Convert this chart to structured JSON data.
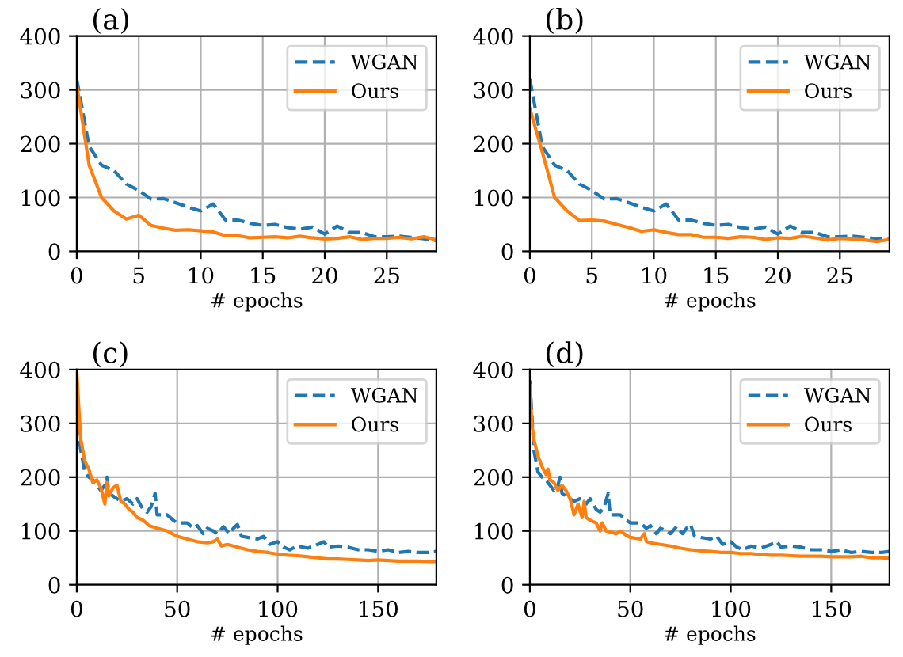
{
  "chart_data": [
    {
      "type": "line",
      "title": "(a)",
      "xlabel": "# epochs",
      "xlim": [
        0,
        29
      ],
      "ylim": [
        0,
        400
      ],
      "xticks": [
        0,
        5,
        10,
        15,
        20,
        25
      ],
      "yticks": [
        0,
        100,
        200,
        300,
        400
      ],
      "grid": true,
      "legend": "top right",
      "series": [
        {
          "name": "WGAN",
          "color": "#1f77b4",
          "line_style": "dashed",
          "x": [
            0,
            1,
            2,
            3,
            4,
            5,
            6,
            7,
            8,
            9,
            10,
            11,
            12,
            13,
            14,
            15,
            16,
            17,
            18,
            19,
            20,
            21,
            22,
            23,
            24,
            25,
            26,
            27,
            28,
            29
          ],
          "values": [
            320,
            195,
            160,
            150,
            125,
            113,
            97,
            98,
            90,
            82,
            75,
            88,
            58,
            58,
            52,
            48,
            50,
            44,
            41,
            45,
            32,
            47,
            35,
            35,
            27,
            27,
            28,
            26,
            23,
            20
          ]
        },
        {
          "name": "Ours",
          "color": "#ff7f0e",
          "line_style": "solid",
          "x": [
            0,
            1,
            2,
            3,
            4,
            5,
            6,
            7,
            8,
            9,
            10,
            11,
            12,
            13,
            14,
            15,
            16,
            17,
            18,
            19,
            20,
            21,
            22,
            23,
            24,
            25,
            26,
            27,
            28,
            29
          ],
          "values": [
            310,
            160,
            100,
            75,
            60,
            67,
            48,
            43,
            39,
            40,
            38,
            36,
            29,
            29,
            25,
            26,
            27,
            25,
            28,
            25,
            23,
            24,
            27,
            22,
            24,
            24,
            26,
            23,
            27,
            21
          ]
        }
      ]
    },
    {
      "type": "line",
      "title": "(b)",
      "xlabel": "# epochs",
      "xlim": [
        0,
        29
      ],
      "ylim": [
        0,
        400
      ],
      "xticks": [
        0,
        5,
        10,
        15,
        20,
        25
      ],
      "yticks": [
        0,
        100,
        200,
        300,
        400
      ],
      "grid": true,
      "legend": "top right",
      "series": [
        {
          "name": "WGAN",
          "color": "#1f77b4",
          "line_style": "dashed",
          "x": [
            0,
            1,
            2,
            3,
            4,
            5,
            6,
            7,
            8,
            9,
            10,
            11,
            12,
            13,
            14,
            15,
            16,
            17,
            18,
            19,
            20,
            21,
            22,
            23,
            24,
            25,
            26,
            27,
            28,
            29
          ],
          "values": [
            320,
            195,
            160,
            150,
            125,
            113,
            97,
            98,
            90,
            82,
            75,
            88,
            58,
            58,
            52,
            48,
            50,
            44,
            41,
            45,
            32,
            47,
            35,
            35,
            27,
            27,
            28,
            26,
            23,
            22
          ]
        },
        {
          "name": "Ours",
          "color": "#ff7f0e",
          "line_style": "solid",
          "x": [
            0,
            1,
            2,
            3,
            4,
            5,
            6,
            7,
            8,
            9,
            10,
            11,
            12,
            13,
            14,
            15,
            16,
            17,
            18,
            19,
            20,
            21,
            22,
            23,
            24,
            25,
            26,
            27,
            28,
            29
          ],
          "values": [
            265,
            185,
            100,
            75,
            57,
            58,
            56,
            50,
            44,
            37,
            40,
            35,
            31,
            31,
            26,
            26,
            24,
            27,
            26,
            22,
            25,
            24,
            28,
            25,
            21,
            24,
            23,
            21,
            18,
            22
          ]
        }
      ]
    },
    {
      "type": "line",
      "title": "(c)",
      "xlabel": "# epochs",
      "xlim": [
        0,
        179
      ],
      "ylim": [
        0,
        400
      ],
      "xticks": [
        0,
        50,
        100,
        150
      ],
      "yticks": [
        0,
        100,
        200,
        300,
        400
      ],
      "grid": true,
      "legend": "top right",
      "series": [
        {
          "name": "WGAN",
          "color": "#1f77b4",
          "line_style": "dashed",
          "x": [
            0,
            2,
            4,
            6,
            8,
            10,
            12,
            14,
            15,
            16,
            18,
            20,
            22,
            25,
            28,
            30,
            33,
            35,
            37,
            39,
            40,
            43,
            45,
            48,
            50,
            55,
            58,
            60,
            63,
            65,
            68,
            70,
            73,
            76,
            78,
            80,
            82,
            85,
            90,
            93,
            96,
            100,
            103,
            106,
            110,
            115,
            120,
            123,
            125,
            130,
            135,
            140,
            145,
            150,
            155,
            160,
            165,
            170,
            175,
            179
          ],
          "values": [
            300,
            250,
            210,
            200,
            195,
            185,
            175,
            185,
            200,
            170,
            165,
            160,
            155,
            160,
            150,
            160,
            140,
            135,
            145,
            170,
            130,
            130,
            130,
            120,
            115,
            115,
            105,
            110,
            95,
            105,
            100,
            95,
            108,
            95,
            105,
            112,
            90,
            88,
            85,
            90,
            75,
            80,
            70,
            65,
            72,
            68,
            75,
            80,
            70,
            72,
            70,
            65,
            65,
            62,
            65,
            60,
            62,
            60,
            60,
            62
          ]
        },
        {
          "name": "Ours",
          "color": "#ff7f0e",
          "line_style": "solid",
          "x": [
            0,
            1,
            2,
            4,
            6,
            8,
            10,
            12,
            14,
            15,
            16,
            18,
            20,
            22,
            24,
            26,
            28,
            30,
            33,
            36,
            40,
            45,
            50,
            55,
            60,
            65,
            68,
            70,
            72,
            75,
            80,
            85,
            90,
            95,
            100,
            105,
            110,
            115,
            120,
            125,
            130,
            135,
            140,
            145,
            150,
            155,
            160,
            165,
            170,
            175,
            179
          ],
          "values": [
            400,
            330,
            270,
            230,
            215,
            190,
            195,
            180,
            150,
            190,
            165,
            180,
            185,
            155,
            150,
            140,
            135,
            125,
            120,
            110,
            105,
            100,
            90,
            85,
            80,
            78,
            80,
            85,
            72,
            75,
            70,
            65,
            62,
            60,
            57,
            55,
            54,
            52,
            50,
            48,
            48,
            47,
            46,
            45,
            46,
            45,
            44,
            44,
            44,
            43,
            43
          ]
        }
      ]
    },
    {
      "type": "line",
      "title": "(d)",
      "xlabel": "# epochs",
      "xlim": [
        0,
        179
      ],
      "ylim": [
        0,
        400
      ],
      "xticks": [
        0,
        50,
        100,
        150
      ],
      "yticks": [
        0,
        100,
        200,
        300,
        400
      ],
      "grid": true,
      "legend": "top right",
      "series": [
        {
          "name": "WGAN",
          "color": "#1f77b4",
          "line_style": "dashed",
          "x": [
            0,
            2,
            4,
            6,
            8,
            10,
            12,
            14,
            15,
            16,
            18,
            20,
            22,
            25,
            28,
            30,
            33,
            35,
            37,
            39,
            40,
            43,
            45,
            48,
            50,
            55,
            58,
            60,
            63,
            65,
            68,
            70,
            73,
            76,
            78,
            80,
            82,
            85,
            90,
            93,
            96,
            100,
            103,
            106,
            110,
            115,
            120,
            123,
            125,
            130,
            135,
            140,
            145,
            150,
            155,
            160,
            165,
            170,
            175,
            179
          ],
          "values": [
            380,
            250,
            210,
            200,
            195,
            185,
            175,
            185,
            200,
            170,
            165,
            160,
            155,
            160,
            150,
            160,
            140,
            135,
            145,
            170,
            130,
            130,
            130,
            120,
            115,
            115,
            105,
            110,
            95,
            105,
            100,
            95,
            108,
            95,
            105,
            112,
            90,
            88,
            85,
            90,
            75,
            80,
            70,
            65,
            72,
            68,
            75,
            80,
            70,
            72,
            70,
            65,
            65,
            62,
            65,
            60,
            62,
            60,
            60,
            62
          ]
        },
        {
          "name": "Ours",
          "color": "#ff7f0e",
          "line_style": "solid",
          "x": [
            0,
            1,
            2,
            4,
            6,
            8,
            9,
            10,
            12,
            14,
            16,
            18,
            20,
            22,
            24,
            26,
            27,
            28,
            30,
            33,
            35,
            36,
            38,
            40,
            43,
            45,
            48,
            50,
            55,
            57,
            58,
            60,
            65,
            70,
            75,
            80,
            85,
            90,
            95,
            100,
            105,
            110,
            115,
            120,
            125,
            130,
            135,
            140,
            145,
            150,
            155,
            160,
            165,
            170,
            175,
            179
          ],
          "values": [
            370,
            300,
            270,
            240,
            220,
            205,
            215,
            195,
            190,
            175,
            185,
            175,
            160,
            130,
            150,
            125,
            155,
            125,
            120,
            115,
            100,
            115,
            100,
            98,
            95,
            100,
            92,
            88,
            85,
            95,
            80,
            78,
            75,
            72,
            68,
            65,
            63,
            62,
            60,
            60,
            58,
            58,
            56,
            55,
            55,
            54,
            53,
            53,
            53,
            52,
            52,
            52,
            53,
            50,
            50,
            49
          ]
        }
      ]
    }
  ]
}
